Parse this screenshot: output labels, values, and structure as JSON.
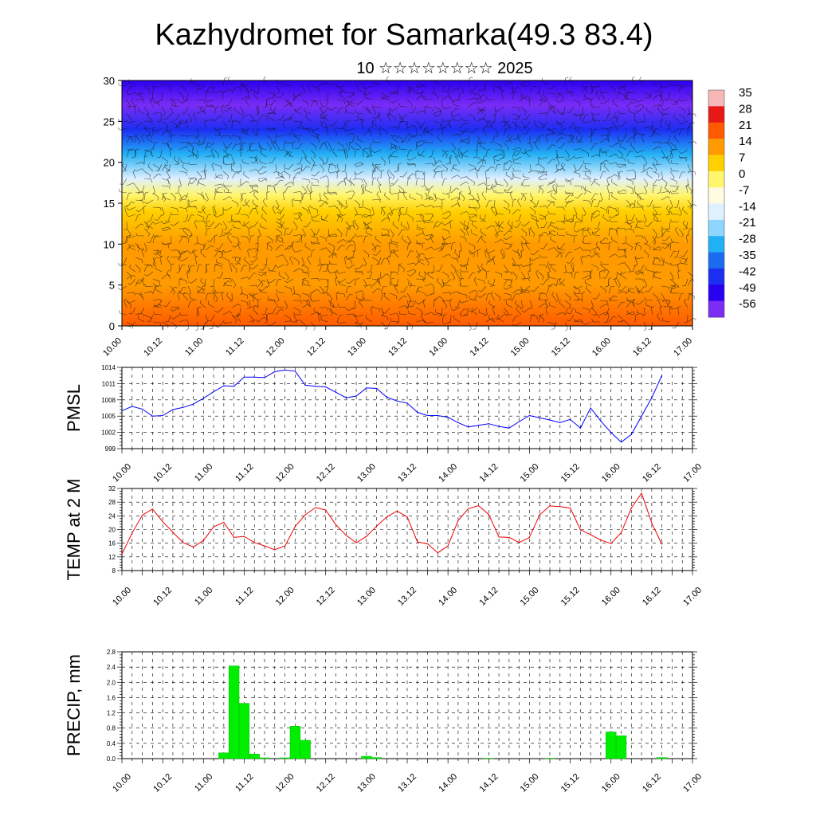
{
  "header": {
    "title": "Kazhydromet for Samarka(49.3 83.4)",
    "subtitle": "10 ☆☆☆☆☆☆☆☆ 2025"
  },
  "x_axis": {
    "ticks": [
      "10.00",
      "10.12",
      "11.00",
      "11.12",
      "12.00",
      "12.12",
      "13.00",
      "13.12",
      "14.00",
      "14.12",
      "15.00",
      "15.12",
      "16.00",
      "16.12",
      "17.00"
    ]
  },
  "colorbar": {
    "labels": [
      "35",
      "28",
      "21",
      "14",
      "7",
      "0",
      "-7",
      "-14",
      "-21",
      "-28",
      "-35",
      "-42",
      "-49",
      "-56"
    ],
    "colors": [
      "#f7b7b7",
      "#e81818",
      "#ff5a00",
      "#ff9b00",
      "#ffd000",
      "#fff66e",
      "#fffbe0",
      "#dff0ff",
      "#8ed6ff",
      "#22b0f5",
      "#1a6bf0",
      "#1c2ef2",
      "#2a00f0",
      "#7b2cf5"
    ]
  },
  "chart_data": [
    {
      "type": "heatmap",
      "title": "",
      "xlabel": "",
      "ylabel": "",
      "xlim": [
        0,
        14
      ],
      "ylim": [
        0,
        30
      ],
      "yticks": [
        "0",
        "5",
        "10",
        "15",
        "20",
        "25",
        "30"
      ],
      "value_range": [
        -56,
        35
      ],
      "temperature_profile_by_height": [
        {
          "y": 0,
          "value": 21
        },
        {
          "y": 5,
          "value": 17
        },
        {
          "y": 10,
          "value": 12
        },
        {
          "y": 14,
          "value": 7
        },
        {
          "y": 16,
          "value": 0
        },
        {
          "y": 18,
          "value": -12
        },
        {
          "y": 21,
          "value": -28
        },
        {
          "y": 24,
          "value": -45
        },
        {
          "y": 27,
          "value": -55
        },
        {
          "y": 30,
          "value": -52
        }
      ],
      "overlay": "wind barbs"
    },
    {
      "type": "line",
      "ylabel": "PMSL",
      "ylim": [
        999,
        1014
      ],
      "yticks": [
        "999",
        "1002",
        "1005",
        "1008",
        "1011",
        "1014"
      ],
      "color": "#0000ff",
      "x": [
        0,
        0.25,
        0.5,
        0.75,
        1,
        1.25,
        1.5,
        1.75,
        2,
        2.25,
        2.5,
        2.75,
        3,
        3.25,
        3.5,
        3.75,
        4,
        4.25,
        4.5,
        4.75,
        5,
        5.25,
        5.5,
        5.75,
        6,
        6.25,
        6.5,
        6.75,
        7,
        7.25,
        7.5,
        7.75,
        8,
        8.25,
        8.5,
        8.75,
        9,
        9.25,
        9.5,
        9.75,
        10,
        10.25,
        10.5,
        10.75,
        11,
        11.25,
        11.5,
        11.75,
        12,
        12.25,
        12.5,
        12.75,
        13,
        13.25
      ],
      "values": [
        1006,
        1006.8,
        1006.3,
        1005,
        1005.1,
        1006.2,
        1006.6,
        1007.2,
        1008.3,
        1009.5,
        1010.6,
        1010.5,
        1012.2,
        1012.2,
        1012.1,
        1013.2,
        1013.5,
        1013.3,
        1010.7,
        1010.5,
        1010.4,
        1009.4,
        1008.4,
        1008.7,
        1010.2,
        1010.1,
        1008.5,
        1007.8,
        1007.4,
        1005.7,
        1005.1,
        1005.1,
        1004.8,
        1003.8,
        1003,
        1003.3,
        1003.6,
        1003.1,
        1002.8,
        1004,
        1005.1,
        1004.7,
        1004.3,
        1003.8,
        1004.4,
        1002.8,
        1006.5,
        1004.1,
        1002,
        1000.2,
        1001.6,
        1005,
        1008.4,
        1012.5
      ]
    },
    {
      "type": "line",
      "ylabel": "TEMP at 2 M",
      "ylim": [
        8,
        32
      ],
      "yticks": [
        "8",
        "12",
        "16",
        "20",
        "24",
        "28",
        "32"
      ],
      "color": "#ee0000",
      "x": [
        0,
        0.25,
        0.5,
        0.75,
        1,
        1.25,
        1.5,
        1.75,
        2,
        2.25,
        2.5,
        2.75,
        3,
        3.25,
        3.5,
        3.75,
        4,
        4.25,
        4.5,
        4.75,
        5,
        5.25,
        5.5,
        5.75,
        6,
        6.25,
        6.5,
        6.75,
        7,
        7.25,
        7.5,
        7.75,
        8,
        8.25,
        8.5,
        8.75,
        9,
        9.25,
        9.5,
        9.75,
        10,
        10.25,
        10.5,
        10.75,
        11,
        11.25,
        11.5,
        11.75,
        12,
        12.25,
        12.5,
        12.75,
        13,
        13.25
      ],
      "values": [
        12.8,
        19,
        24.2,
        26,
        22.3,
        19.2,
        16.2,
        14.9,
        16.8,
        20.8,
        22.1,
        17.7,
        18,
        16.2,
        15.2,
        14.1,
        15.2,
        20.9,
        24.3,
        26.4,
        25.7,
        21.4,
        18.3,
        16.1,
        18,
        21,
        23.7,
        25.4,
        23.7,
        16.4,
        15.8,
        13.2,
        15.2,
        22.6,
        26.1,
        27,
        24.4,
        17.8,
        17.7,
        16.2,
        17.7,
        24.3,
        26.9,
        26.7,
        26.3,
        19.9,
        18.5,
        16.9,
        15.9,
        19.1,
        26.3,
        30.6,
        21.9,
        15.7
      ]
    },
    {
      "type": "bar",
      "ylabel": "PRECIP, mm",
      "ylim": [
        0,
        2.8
      ],
      "yticks": [
        "0.0",
        "0.4",
        "0.8",
        "1.2",
        "1.6",
        "2.0",
        "2.4",
        "2.8"
      ],
      "color": "#00ee00",
      "x": [
        2.5,
        2.75,
        3,
        3.25,
        3.5,
        4,
        4.25,
        4.5,
        6,
        6.25,
        9,
        10.5,
        12,
        12.25,
        13.25
      ],
      "values": [
        0.15,
        2.43,
        1.45,
        0.12,
        0.02,
        0.02,
        0.85,
        0.48,
        0.06,
        0.03,
        0.01,
        0.01,
        0.7,
        0.6,
        0.03
      ]
    }
  ]
}
